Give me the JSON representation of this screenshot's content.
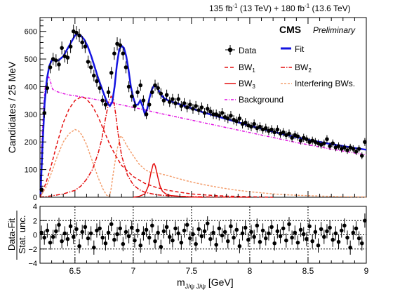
{
  "header": {
    "lumi_a": "135 fb",
    "lumi_a_exp": "-1",
    "lumi_a_energy": " (13 TeV) + ",
    "lumi_b": "180 fb",
    "lumi_b_exp": "-1",
    "lumi_b_energy": " (13.6 TeV)",
    "experiment": "CMS",
    "status": "Preliminary"
  },
  "legend": {
    "data": "Data",
    "fit": "Fit",
    "bw1": "BW",
    "bw1_sub": "1",
    "bw2": "BW",
    "bw2_sub": "2",
    "bw3": "BW",
    "bw3_sub": "3",
    "interfering": "Interfering BWs.",
    "background": "Background"
  },
  "colors": {
    "fit": "#1414e0",
    "bw": "#e41010",
    "interfering": "#f4a070",
    "background": "#e010e0",
    "data": "#000000"
  },
  "chart_data": [
    {
      "type": "scatter",
      "panel": "main",
      "ylabel": "Candidates / 25 MeV",
      "xlim": [
        6.2,
        9.0
      ],
      "ylim": [
        0,
        650
      ],
      "yticks": [
        0,
        100,
        200,
        300,
        400,
        500,
        600
      ],
      "series": [
        {
          "name": "Data",
          "x": [
            6.2125,
            6.2375,
            6.2625,
            6.2875,
            6.3125,
            6.3375,
            6.3625,
            6.3875,
            6.4125,
            6.4375,
            6.4625,
            6.4875,
            6.5125,
            6.5375,
            6.5625,
            6.5875,
            6.6125,
            6.6375,
            6.6625,
            6.6875,
            6.7125,
            6.7375,
            6.7625,
            6.7875,
            6.8125,
            6.8375,
            6.8625,
            6.8875,
            6.9125,
            6.9375,
            6.9625,
            6.9875,
            7.0125,
            7.0375,
            7.0625,
            7.0875,
            7.1125,
            7.1375,
            7.1625,
            7.1875,
            7.2125,
            7.2375,
            7.2625,
            7.2875,
            7.3125,
            7.3375,
            7.3625,
            7.3875,
            7.4125,
            7.4375,
            7.4625,
            7.4875,
            7.5125,
            7.5375,
            7.5625,
            7.5875,
            7.6125,
            7.6375,
            7.6625,
            7.6875,
            7.7125,
            7.7375,
            7.7625,
            7.7875,
            7.8125,
            7.8375,
            7.8625,
            7.8875,
            7.9125,
            7.9375,
            7.9625,
            7.9875,
            8.0125,
            8.0375,
            8.0625,
            8.0875,
            8.1125,
            8.1375,
            8.1625,
            8.1875,
            8.2125,
            8.2375,
            8.2625,
            8.2875,
            8.3125,
            8.3375,
            8.3625,
            8.3875,
            8.4125,
            8.4375,
            8.4625,
            8.4875,
            8.5125,
            8.5375,
            8.5625,
            8.5875,
            8.6125,
            8.6375,
            8.6625,
            8.6875,
            8.7125,
            8.7375,
            8.7625,
            8.7875,
            8.8125,
            8.8375,
            8.8625,
            8.8875,
            8.9125,
            8.9375,
            8.9625,
            8.9875
          ],
          "y": [
            28,
            305,
            395,
            470,
            500,
            495,
            480,
            540,
            510,
            505,
            545,
            600,
            595,
            585,
            560,
            545,
            490,
            470,
            440,
            420,
            395,
            350,
            335,
            380,
            450,
            520,
            555,
            550,
            520,
            470,
            400,
            365,
            330,
            380,
            405,
            350,
            300,
            335,
            380,
            405,
            395,
            375,
            350,
            370,
            345,
            355,
            340,
            355,
            330,
            340,
            325,
            335,
            320,
            330,
            315,
            325,
            305,
            320,
            310,
            300,
            300,
            295,
            305,
            290,
            285,
            295,
            280,
            275,
            285,
            265,
            270,
            260,
            255,
            265,
            250,
            255,
            245,
            250,
            240,
            245,
            235,
            245,
            230,
            235,
            225,
            230,
            215,
            225,
            220,
            205,
            215,
            210,
            200,
            205,
            200,
            195,
            190,
            195,
            210,
            185,
            195,
            180,
            185,
            175,
            180,
            170,
            180,
            175,
            165,
            175,
            150,
            200
          ]
        },
        {
          "name": "Fit",
          "x": [
            6.205,
            6.22,
            6.24,
            6.26,
            6.28,
            6.3,
            6.33,
            6.36,
            6.4,
            6.44,
            6.48,
            6.5,
            6.52,
            6.55,
            6.58,
            6.61,
            6.64,
            6.67,
            6.7,
            6.73,
            6.76,
            6.78,
            6.8,
            6.82,
            6.84,
            6.86,
            6.88,
            6.9,
            6.92,
            6.94,
            6.96,
            6.98,
            7.0,
            7.02,
            7.04,
            7.06,
            7.08,
            7.1,
            7.12,
            7.14,
            7.16,
            7.18,
            7.2,
            7.22,
            7.24,
            7.26,
            7.3,
            7.35,
            7.4,
            7.5,
            7.6,
            7.7,
            7.8,
            7.9,
            8.0,
            8.1,
            8.2,
            8.3,
            8.4,
            8.5,
            8.6,
            8.7,
            8.8,
            8.9,
            9.0
          ],
          "y": [
            10,
            170,
            340,
            430,
            475,
            495,
            495,
            495,
            510,
            540,
            570,
            585,
            590,
            585,
            570,
            545,
            510,
            470,
            430,
            395,
            360,
            340,
            330,
            345,
            400,
            480,
            535,
            548,
            540,
            510,
            460,
            400,
            360,
            335,
            335,
            350,
            330,
            300,
            320,
            360,
            390,
            405,
            400,
            385,
            370,
            360,
            350,
            343,
            336,
            322,
            307,
            295,
            283,
            271,
            259,
            248,
            237,
            227,
            217,
            208,
            200,
            192,
            185,
            178,
            172
          ]
        },
        {
          "name": "BW1",
          "x": [
            6.2,
            6.25,
            6.3,
            6.35,
            6.4,
            6.45,
            6.5,
            6.55,
            6.58,
            6.6,
            6.65,
            6.7,
            6.75,
            6.8,
            6.85,
            6.9,
            7.0,
            7.1,
            7.2,
            7.3,
            7.4,
            7.5,
            7.6,
            7.7,
            7.8,
            7.9,
            8.0,
            8.1,
            8.2
          ],
          "y": [
            0,
            50,
            120,
            200,
            270,
            320,
            350,
            362,
            360,
            355,
            330,
            290,
            240,
            190,
            150,
            115,
            75,
            50,
            35,
            25,
            18,
            12,
            9,
            6,
            4,
            3,
            2,
            1,
            0
          ]
        },
        {
          "name": "BW2",
          "x": [
            6.2,
            6.3,
            6.4,
            6.5,
            6.55,
            6.6,
            6.65,
            6.7,
            6.73,
            6.76,
            6.79,
            6.81,
            6.83,
            6.85,
            6.87,
            6.9,
            6.95,
            7.0,
            7.05,
            7.1,
            7.2,
            7.3,
            7.5,
            7.7,
            8.0
          ],
          "y": [
            0,
            5,
            12,
            25,
            40,
            65,
            100,
            160,
            210,
            280,
            345,
            365,
            355,
            300,
            230,
            150,
            80,
            45,
            28,
            18,
            9,
            5,
            2,
            1,
            0
          ]
        },
        {
          "name": "BW3",
          "x": [
            7.0,
            7.05,
            7.1,
            7.13,
            7.15,
            7.17,
            7.18,
            7.19,
            7.21,
            7.23,
            7.25,
            7.28,
            7.32,
            7.4,
            7.5,
            7.6
          ],
          "y": [
            0,
            3,
            12,
            40,
            85,
            118,
            122,
            112,
            75,
            40,
            22,
            12,
            6,
            3,
            1,
            0
          ]
        },
        {
          "name": "Interfering BWs.",
          "x": [
            6.2,
            6.25,
            6.3,
            6.35,
            6.4,
            6.45,
            6.5,
            6.53,
            6.56,
            6.6,
            6.65,
            6.7,
            6.74,
            6.77,
            6.79,
            6.8,
            6.81,
            6.83,
            6.86,
            6.89,
            6.91,
            6.94,
            7.0,
            7.05,
            7.1,
            7.15,
            7.2,
            7.3,
            7.4,
            7.5,
            7.6,
            7.7,
            7.8,
            7.9,
            8.0,
            8.2,
            8.4,
            8.6,
            8.8,
            9.0
          ],
          "y": [
            0,
            35,
            90,
            150,
            200,
            230,
            245,
            240,
            225,
            190,
            130,
            70,
            30,
            8,
            2,
            10,
            30,
            90,
            170,
            222,
            215,
            190,
            150,
            120,
            100,
            90,
            88,
            78,
            66,
            55,
            46,
            38,
            31,
            25,
            20,
            12,
            7,
            4,
            2,
            1
          ]
        },
        {
          "name": "Background",
          "x": [
            6.205,
            6.215,
            6.23,
            6.245,
            6.26,
            6.275,
            6.29,
            6.3,
            6.31,
            6.33,
            6.36,
            6.4,
            6.45,
            6.5,
            6.6,
            6.7,
            6.8,
            6.9,
            7.0,
            7.1,
            7.2,
            7.3,
            7.4,
            7.5,
            7.6,
            7.7,
            7.8,
            7.9,
            8.0,
            8.1,
            8.2,
            8.3,
            8.4,
            8.5,
            8.6,
            8.7,
            8.8,
            8.9,
            9.0
          ],
          "y": [
            0,
            180,
            320,
            400,
            430,
            435,
            420,
            400,
            390,
            385,
            380,
            375,
            370,
            367,
            360,
            352,
            343,
            334,
            325,
            316,
            306,
            297,
            288,
            279,
            270,
            261,
            252,
            243,
            234,
            225,
            216,
            207,
            198,
            190,
            182,
            174,
            167,
            160,
            153
          ]
        }
      ]
    },
    {
      "type": "scatter",
      "panel": "ratio",
      "ylabel": "Data-Fit / Stat. unc.",
      "ylabel_num": "Data-Fit",
      "ylabel_den": "Stat. unc.",
      "xlabel": "m",
      "xlabel_sub": "J/ψ J/ψ",
      "xlabel_unit": "  [GeV]",
      "xlim": [
        6.2,
        9.0
      ],
      "ylim": [
        -4,
        4
      ],
      "yticks": [
        "4",
        "2",
        "0",
        "−2",
        "−4"
      ],
      "xticks": [
        "6.5",
        "7",
        "7.5",
        "8",
        "8.5",
        "9"
      ],
      "gridlines_x": [
        6.5,
        7.0,
        7.5,
        8.0,
        8.5
      ],
      "gridlines_y": [
        2,
        0,
        -2
      ],
      "x": [
        6.2125,
        6.2375,
        6.2625,
        6.2875,
        6.3125,
        6.3375,
        6.3625,
        6.3875,
        6.4125,
        6.4375,
        6.4625,
        6.4875,
        6.5125,
        6.5375,
        6.5625,
        6.5875,
        6.6125,
        6.6375,
        6.6625,
        6.6875,
        6.7125,
        6.7375,
        6.7625,
        6.7875,
        6.8125,
        6.8375,
        6.8625,
        6.8875,
        6.9125,
        6.9375,
        6.9625,
        6.9875,
        7.0125,
        7.0375,
        7.0625,
        7.0875,
        7.1125,
        7.1375,
        7.1625,
        7.1875,
        7.2125,
        7.2375,
        7.2625,
        7.2875,
        7.3125,
        7.3375,
        7.3625,
        7.3875,
        7.4125,
        7.4375,
        7.4625,
        7.4875,
        7.5125,
        7.5375,
        7.5625,
        7.5875,
        7.6125,
        7.6375,
        7.6625,
        7.6875,
        7.7125,
        7.7375,
        7.7625,
        7.7875,
        7.8125,
        7.8375,
        7.8625,
        7.8875,
        7.9125,
        7.9375,
        7.9625,
        7.9875,
        8.0125,
        8.0375,
        8.0625,
        8.0875,
        8.1125,
        8.1375,
        8.1625,
        8.1875,
        8.2125,
        8.2375,
        8.2625,
        8.2875,
        8.3125,
        8.3375,
        8.3625,
        8.3875,
        8.4125,
        8.4375,
        8.4625,
        8.4875,
        8.5125,
        8.5375,
        8.5625,
        8.5875,
        8.6125,
        8.6375,
        8.6625,
        8.6875,
        8.7125,
        8.7375,
        8.7625,
        8.7875,
        8.8125,
        8.8375,
        8.8625,
        8.8875,
        8.9125,
        8.9375,
        8.9625,
        8.9875
      ],
      "y": [
        0.3,
        -0.4,
        0.6,
        -1.1,
        -0.3,
        0.5,
        1.4,
        -0.9,
        0.2,
        -0.6,
        1.2,
        -0.3,
        0.8,
        -1.6,
        0.4,
        1.1,
        -0.5,
        0.2,
        -1.8,
        0.6,
        0.9,
        -0.4,
        -1.2,
        0.3,
        1.5,
        -0.7,
        0.1,
        0.9,
        -1.3,
        0.4,
        -0.2,
        1.0,
        -0.8,
        0.6,
        -1.5,
        0.2,
        0.7,
        -0.4,
        1.3,
        -0.9,
        0.3,
        -1.7,
        0.5,
        1.1,
        -0.3,
        -0.8,
        0.9,
        0.2,
        -1.1,
        0.6,
        1.4,
        -0.5,
        0.1,
        -1.3,
        0.8,
        -0.2,
        0.5,
        1.6,
        -0.6,
        0.3,
        -1.4,
        0.9,
        -0.1,
        0.4,
        -0.9,
        1.2,
        -0.4,
        0.7,
        -1.6,
        0.2,
        1.0,
        -0.7,
        0.4,
        -0.3,
        1.3,
        -1.0,
        0.6,
        -0.5,
        0.2,
        1.1,
        -1.2,
        0.5,
        -0.2,
        0.9,
        -0.8,
        1.5,
        -0.4,
        0.3,
        -1.1,
        0.7,
        0.1,
        -0.6,
        1.2,
        -0.9,
        0.4,
        -1.5,
        0.8,
        -0.3,
        0.5,
        1.0,
        -0.7,
        0.2,
        -1.0,
        0.6,
        1.3,
        -0.4,
        -1.8,
        0.3,
        0.9,
        -0.5,
        -1.2,
        2.0
      ]
    }
  ]
}
